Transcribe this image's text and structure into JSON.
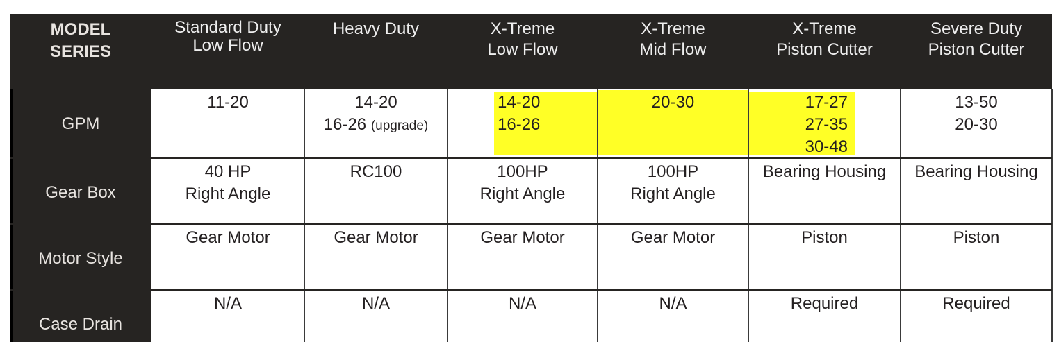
{
  "header": {
    "row_label": [
      "MODEL",
      "SERIES"
    ],
    "columns": [
      [
        "Standard Duty",
        "Low Flow"
      ],
      [
        "Heavy Duty"
      ],
      [
        "X-Treme",
        "Low Flow"
      ],
      [
        "X-Treme",
        "Mid Flow"
      ],
      [
        "X-Treme",
        "Piston Cutter"
      ],
      [
        "Severe Duty",
        "Piston Cutter"
      ]
    ]
  },
  "rows": [
    {
      "label": "GPM",
      "cells": [
        [
          "11-20"
        ],
        [
          "14-20",
          "16-26"
        ],
        [
          "14-20",
          "16-26"
        ],
        [
          "20-30"
        ],
        [
          "17-27",
          "27-35",
          "30-48"
        ],
        [
          "13-50",
          "20-30"
        ]
      ],
      "note": "(upgrade)"
    },
    {
      "label": "Gear Box",
      "cells": [
        [
          "40 HP",
          "Right Angle"
        ],
        [
          "RC100"
        ],
        [
          "100HP",
          "Right Angle"
        ],
        [
          "100HP",
          "Right Angle"
        ],
        [
          "Bearing Housing"
        ],
        [
          "Bearing Housing"
        ]
      ]
    },
    {
      "label": "Motor Style",
      "cells": [
        [
          "Gear Motor"
        ],
        [
          "Gear Motor"
        ],
        [
          "Gear Motor"
        ],
        [
          "Gear Motor"
        ],
        [
          "Piston"
        ],
        [
          "Piston"
        ]
      ]
    },
    {
      "label": "Case Drain",
      "cells": [
        [
          "N/A"
        ],
        [
          "N/A"
        ],
        [
          "N/A"
        ],
        [
          "N/A"
        ],
        [
          "Required"
        ],
        [
          "Required"
        ]
      ]
    }
  ],
  "colors": {
    "header_bg": "#262422",
    "highlight": "#ffff26"
  }
}
